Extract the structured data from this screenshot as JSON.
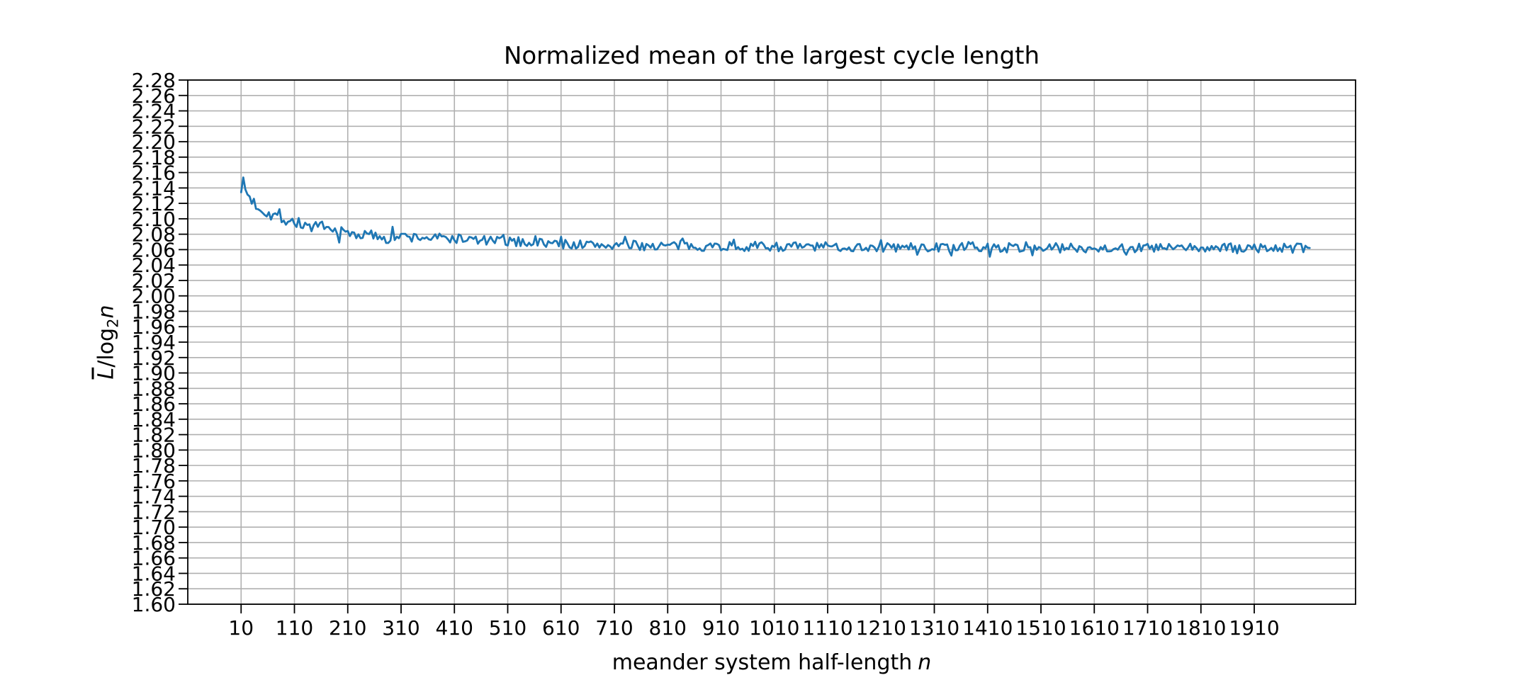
{
  "figure": {
    "title": "Normalized mean of the largest cycle length",
    "xlabel": {
      "text": "meander system half-length",
      "variable": "n"
    },
    "ylabel": {
      "numerator": "L",
      "slash": "/",
      "func": "log",
      "subscript": "2",
      "argument": "n"
    }
  },
  "chart_data": {
    "type": "line",
    "title": "Normalized mean of the largest cycle length",
    "xlabel": "meander system half-length n",
    "ylabel": "L̄/log₂n",
    "grid": true,
    "legend": false,
    "background": "#ffffff",
    "grid_color": "#b0b0b0",
    "axis_color": "#000000",
    "text_color": "#000000",
    "xlim": [
      -90,
      2100
    ],
    "ylim": [
      1.6,
      2.28
    ],
    "x_tick_values": [
      10,
      110,
      210,
      310,
      410,
      510,
      610,
      710,
      810,
      910,
      1010,
      1110,
      1210,
      1310,
      1410,
      1510,
      1610,
      1710,
      1810,
      1910
    ],
    "x_tick_labels": [
      "10",
      "110",
      "210",
      "310",
      "410",
      "510",
      "610",
      "710",
      "810",
      "910",
      "1010",
      "1110",
      "1210",
      "1310",
      "1410",
      "1510",
      "1610",
      "1710",
      "1810",
      "1910"
    ],
    "y_tick_values": [
      1.6,
      1.62,
      1.64,
      1.66,
      1.68,
      1.7,
      1.72,
      1.74,
      1.76,
      1.78,
      1.8,
      1.82,
      1.84,
      1.86,
      1.88,
      1.9,
      1.92,
      1.94,
      1.96,
      1.98,
      2.0,
      2.02,
      2.04,
      2.06,
      2.08,
      2.1,
      2.12,
      2.14,
      2.16,
      2.18,
      2.2,
      2.22,
      2.24,
      2.26,
      2.28
    ],
    "y_tick_labels": [
      "1.60",
      "1.62",
      "1.64",
      "1.66",
      "1.68",
      "1.70",
      "1.72",
      "1.74",
      "1.76",
      "1.78",
      "1.80",
      "1.82",
      "1.84",
      "1.86",
      "1.88",
      "1.90",
      "1.92",
      "1.94",
      "1.96",
      "1.98",
      "2.00",
      "2.02",
      "2.04",
      "2.06",
      "2.08",
      "2.10",
      "2.12",
      "2.14",
      "2.16",
      "2.18",
      "2.20",
      "2.22",
      "2.24",
      "2.26",
      "2.28"
    ],
    "series": [
      {
        "name": "normalized mean of largest cycle length",
        "color": "#1f77b4",
        "line_width": 2.8,
        "n_start": 10,
        "n_end": 2015,
        "n_step": 4,
        "trend_anchors": [
          [
            10,
            2.152
          ],
          [
            12,
            2.148
          ],
          [
            15,
            2.143
          ],
          [
            20,
            2.134
          ],
          [
            25,
            2.129
          ],
          [
            30,
            2.124
          ],
          [
            40,
            2.117
          ],
          [
            55,
            2.11
          ],
          [
            70,
            2.105
          ],
          [
            90,
            2.1
          ],
          [
            110,
            2.096
          ],
          [
            140,
            2.09
          ],
          [
            170,
            2.086
          ],
          [
            210,
            2.081
          ],
          [
            260,
            2.078
          ],
          [
            310,
            2.0765
          ],
          [
            360,
            2.0755
          ],
          [
            410,
            2.0745
          ],
          [
            460,
            2.072
          ],
          [
            510,
            2.0705
          ],
          [
            560,
            2.0695
          ],
          [
            610,
            2.0675
          ],
          [
            660,
            2.0662
          ],
          [
            710,
            2.0655
          ],
          [
            810,
            2.065
          ],
          [
            910,
            2.0645
          ],
          [
            1010,
            2.064
          ],
          [
            1110,
            2.0636
          ],
          [
            1210,
            2.063
          ],
          [
            1310,
            2.0627
          ],
          [
            1410,
            2.0625
          ],
          [
            1510,
            2.0624
          ],
          [
            1610,
            2.0622
          ],
          [
            1710,
            2.0621
          ],
          [
            1810,
            2.062
          ],
          [
            1910,
            2.0619
          ],
          [
            2015,
            2.0618
          ]
        ],
        "noise": {
          "base_amplitude": 0.0062,
          "start_amplitude": 0.0095,
          "decay_n": 180,
          "spike_probability": 0.08,
          "spike_multiplier": 1.9,
          "seed": 7
        }
      }
    ]
  }
}
